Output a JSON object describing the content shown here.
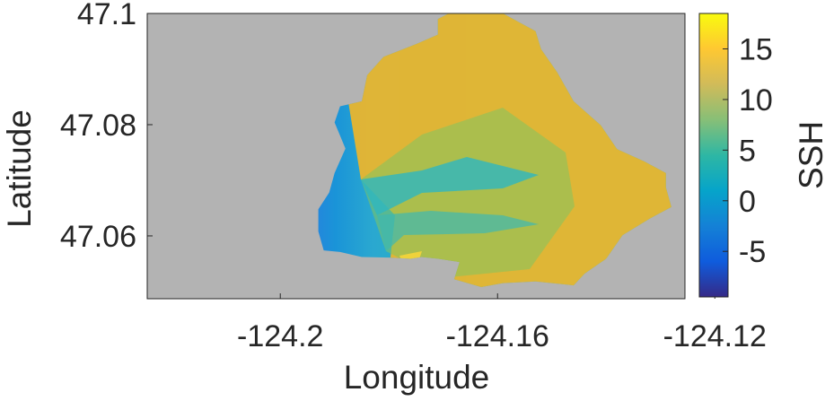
{
  "chart_data": {
    "type": "heatmap",
    "title": "",
    "xlabel": "Longitude",
    "ylabel": "Latitude",
    "xlim": [
      -124.2245,
      -124.1255
    ],
    "ylim": [
      47.0487,
      47.1
    ],
    "x_ticks": [
      -124.2,
      -124.16,
      -124.12
    ],
    "x_tick_labels": [
      "-124.2",
      "-124.16",
      "-124.12"
    ],
    "y_ticks": [
      47.06,
      47.08,
      47.1
    ],
    "y_tick_labels": [
      "47.06",
      "47.08",
      "47.1"
    ],
    "colorbar": {
      "label": "SSH",
      "clim": [
        -9.5,
        18.5
      ],
      "ticks": [
        -5,
        0,
        5,
        10,
        15
      ],
      "tick_labels": [
        "-5",
        "0",
        "5",
        "10",
        "15"
      ],
      "colormap": "parula"
    },
    "grid": false,
    "background_color": "#b3b3b3",
    "domain_outline": [
      [
        -124.192,
        47.0574
      ],
      [
        -124.193,
        47.0608
      ],
      [
        -124.193,
        47.0648
      ],
      [
        -124.191,
        47.0678
      ],
      [
        -124.19,
        47.0713
      ],
      [
        -124.188,
        47.0757
      ],
      [
        -124.19,
        47.0804
      ],
      [
        -124.189,
        47.0833
      ],
      [
        -124.185,
        47.0842
      ],
      [
        -124.184,
        47.0889
      ],
      [
        -124.181,
        47.0922
      ],
      [
        -124.175,
        47.0945
      ],
      [
        -124.171,
        47.0962
      ],
      [
        -124.171,
        47.099
      ],
      [
        -124.169,
        47.1
      ],
      [
        -124.159,
        47.1
      ],
      [
        -124.153,
        47.0968
      ],
      [
        -124.152,
        47.0936
      ],
      [
        -124.149,
        47.0894
      ],
      [
        -124.146,
        47.0842
      ],
      [
        -124.141,
        47.0799
      ],
      [
        -124.138,
        47.0756
      ],
      [
        -124.133,
        47.0734
      ],
      [
        -124.129,
        47.0713
      ],
      [
        -124.129,
        47.0687
      ],
      [
        -124.128,
        47.0652
      ],
      [
        -124.132,
        47.0631
      ],
      [
        -124.137,
        47.0601
      ],
      [
        -124.14,
        47.0559
      ],
      [
        -124.144,
        47.0532
      ],
      [
        -124.146,
        47.0511
      ],
      [
        -124.153,
        47.0518
      ],
      [
        -124.159,
        47.0515
      ],
      [
        -124.163,
        47.0508
      ],
      [
        -124.168,
        47.0522
      ],
      [
        -124.167,
        47.0553
      ],
      [
        -124.171,
        47.0559
      ],
      [
        -124.174,
        47.0562
      ],
      [
        -124.176,
        47.0559
      ],
      [
        -124.18,
        47.0561
      ],
      [
        -124.185,
        47.0562
      ],
      [
        -124.189,
        47.0571
      ]
    ],
    "field_samples": [
      {
        "lon": -124.19,
        "lat": 47.062,
        "ssh": -8
      },
      {
        "lon": -124.186,
        "lat": 47.08,
        "ssh": -6
      },
      {
        "lon": -124.18,
        "lat": 47.07,
        "ssh": -1
      },
      {
        "lon": -124.172,
        "lat": 47.07,
        "ssh": 3
      },
      {
        "lon": -124.16,
        "lat": 47.09,
        "ssh": 13
      },
      {
        "lon": -124.15,
        "lat": 47.08,
        "ssh": 12
      },
      {
        "lon": -124.15,
        "lat": 47.064,
        "ssh": 10
      },
      {
        "lon": -124.14,
        "lat": 47.072,
        "ssh": 6
      }
    ]
  }
}
